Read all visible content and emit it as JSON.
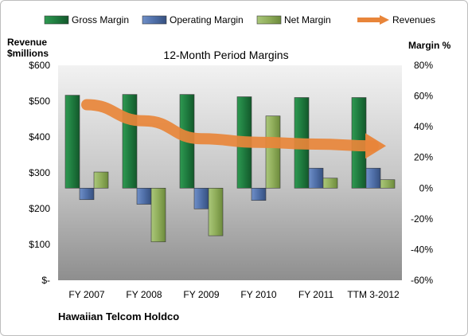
{
  "chart_data": {
    "type": "bar",
    "title": "12-Month Period Margins",
    "categories": [
      "FY 2007",
      "FY 2008",
      "FY 2009",
      "FY 2010",
      "FY 2011",
      "TTM 3-2012"
    ],
    "series": [
      {
        "name": "Gross Margin",
        "axis": "right",
        "color": "#1e7a3e",
        "values": [
          60.5,
          61,
          61,
          59.5,
          59,
          59
        ]
      },
      {
        "name": "Operating Margin",
        "axis": "right",
        "color": "#4f6fa8",
        "values": [
          -7.5,
          -10.5,
          -13.5,
          -8,
          13,
          13
        ]
      },
      {
        "name": "Net Margin",
        "axis": "right",
        "color": "#8fad5a",
        "values": [
          10.5,
          -35,
          -31,
          47,
          6.5,
          5.5
        ]
      },
      {
        "name": "Revenues",
        "axis": "left",
        "type": "line",
        "color": "#e8853a",
        "values": [
          490,
          445,
          395,
          385,
          380,
          375
        ]
      }
    ],
    "left_axis": {
      "label_line1": "Revenue",
      "label_line2": "$millions",
      "min": 0,
      "max": 600,
      "step": 100,
      "tick_labels": [
        "$-",
        "$100",
        "$200",
        "$300",
        "$400",
        "$500",
        "$600"
      ]
    },
    "right_axis": {
      "label": "Margin %",
      "min": -60,
      "max": 80,
      "step": 20,
      "tick_labels": [
        "-60%",
        "-40%",
        "-20%",
        "0%",
        "20%",
        "40%",
        "60%",
        "80%"
      ]
    },
    "legend": {
      "position": "top",
      "items": [
        "Gross Margin",
        "Operating Margin",
        "Net Margin",
        "Revenues"
      ]
    },
    "company": "Hawaiian Telcom Holdco",
    "grid": false
  }
}
